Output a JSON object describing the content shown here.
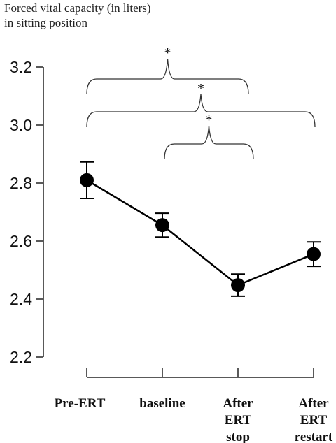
{
  "chart_data": {
    "type": "line",
    "title": [
      "Forced vital capacity (in liters)",
      "in sitting position"
    ],
    "categories": [
      [
        "Pre-ERT"
      ],
      [
        "baseline"
      ],
      [
        "After",
        "ERT",
        "stop"
      ],
      [
        "After",
        "ERT",
        "restart"
      ]
    ],
    "series": [
      {
        "values": [
          2.81,
          2.655,
          2.448,
          2.555
        ],
        "error": [
          0.063,
          0.041,
          0.038,
          0.042
        ]
      }
    ],
    "ylim": [
      2.2,
      3.2
    ],
    "yticks": [
      "2.2",
      "2.4",
      "2.6",
      "2.8",
      "3.0",
      "3.2"
    ],
    "yticks_values": [
      2.2,
      2.4,
      2.6,
      2.8,
      3.0,
      3.2
    ],
    "significance": [
      {
        "from": 0,
        "to": 2,
        "label": "*"
      },
      {
        "from": 0,
        "to": 3,
        "label": "*"
      },
      {
        "from": 1,
        "to": 2,
        "label": "*"
      }
    ],
    "grid": false,
    "marker_color": "#000000"
  }
}
